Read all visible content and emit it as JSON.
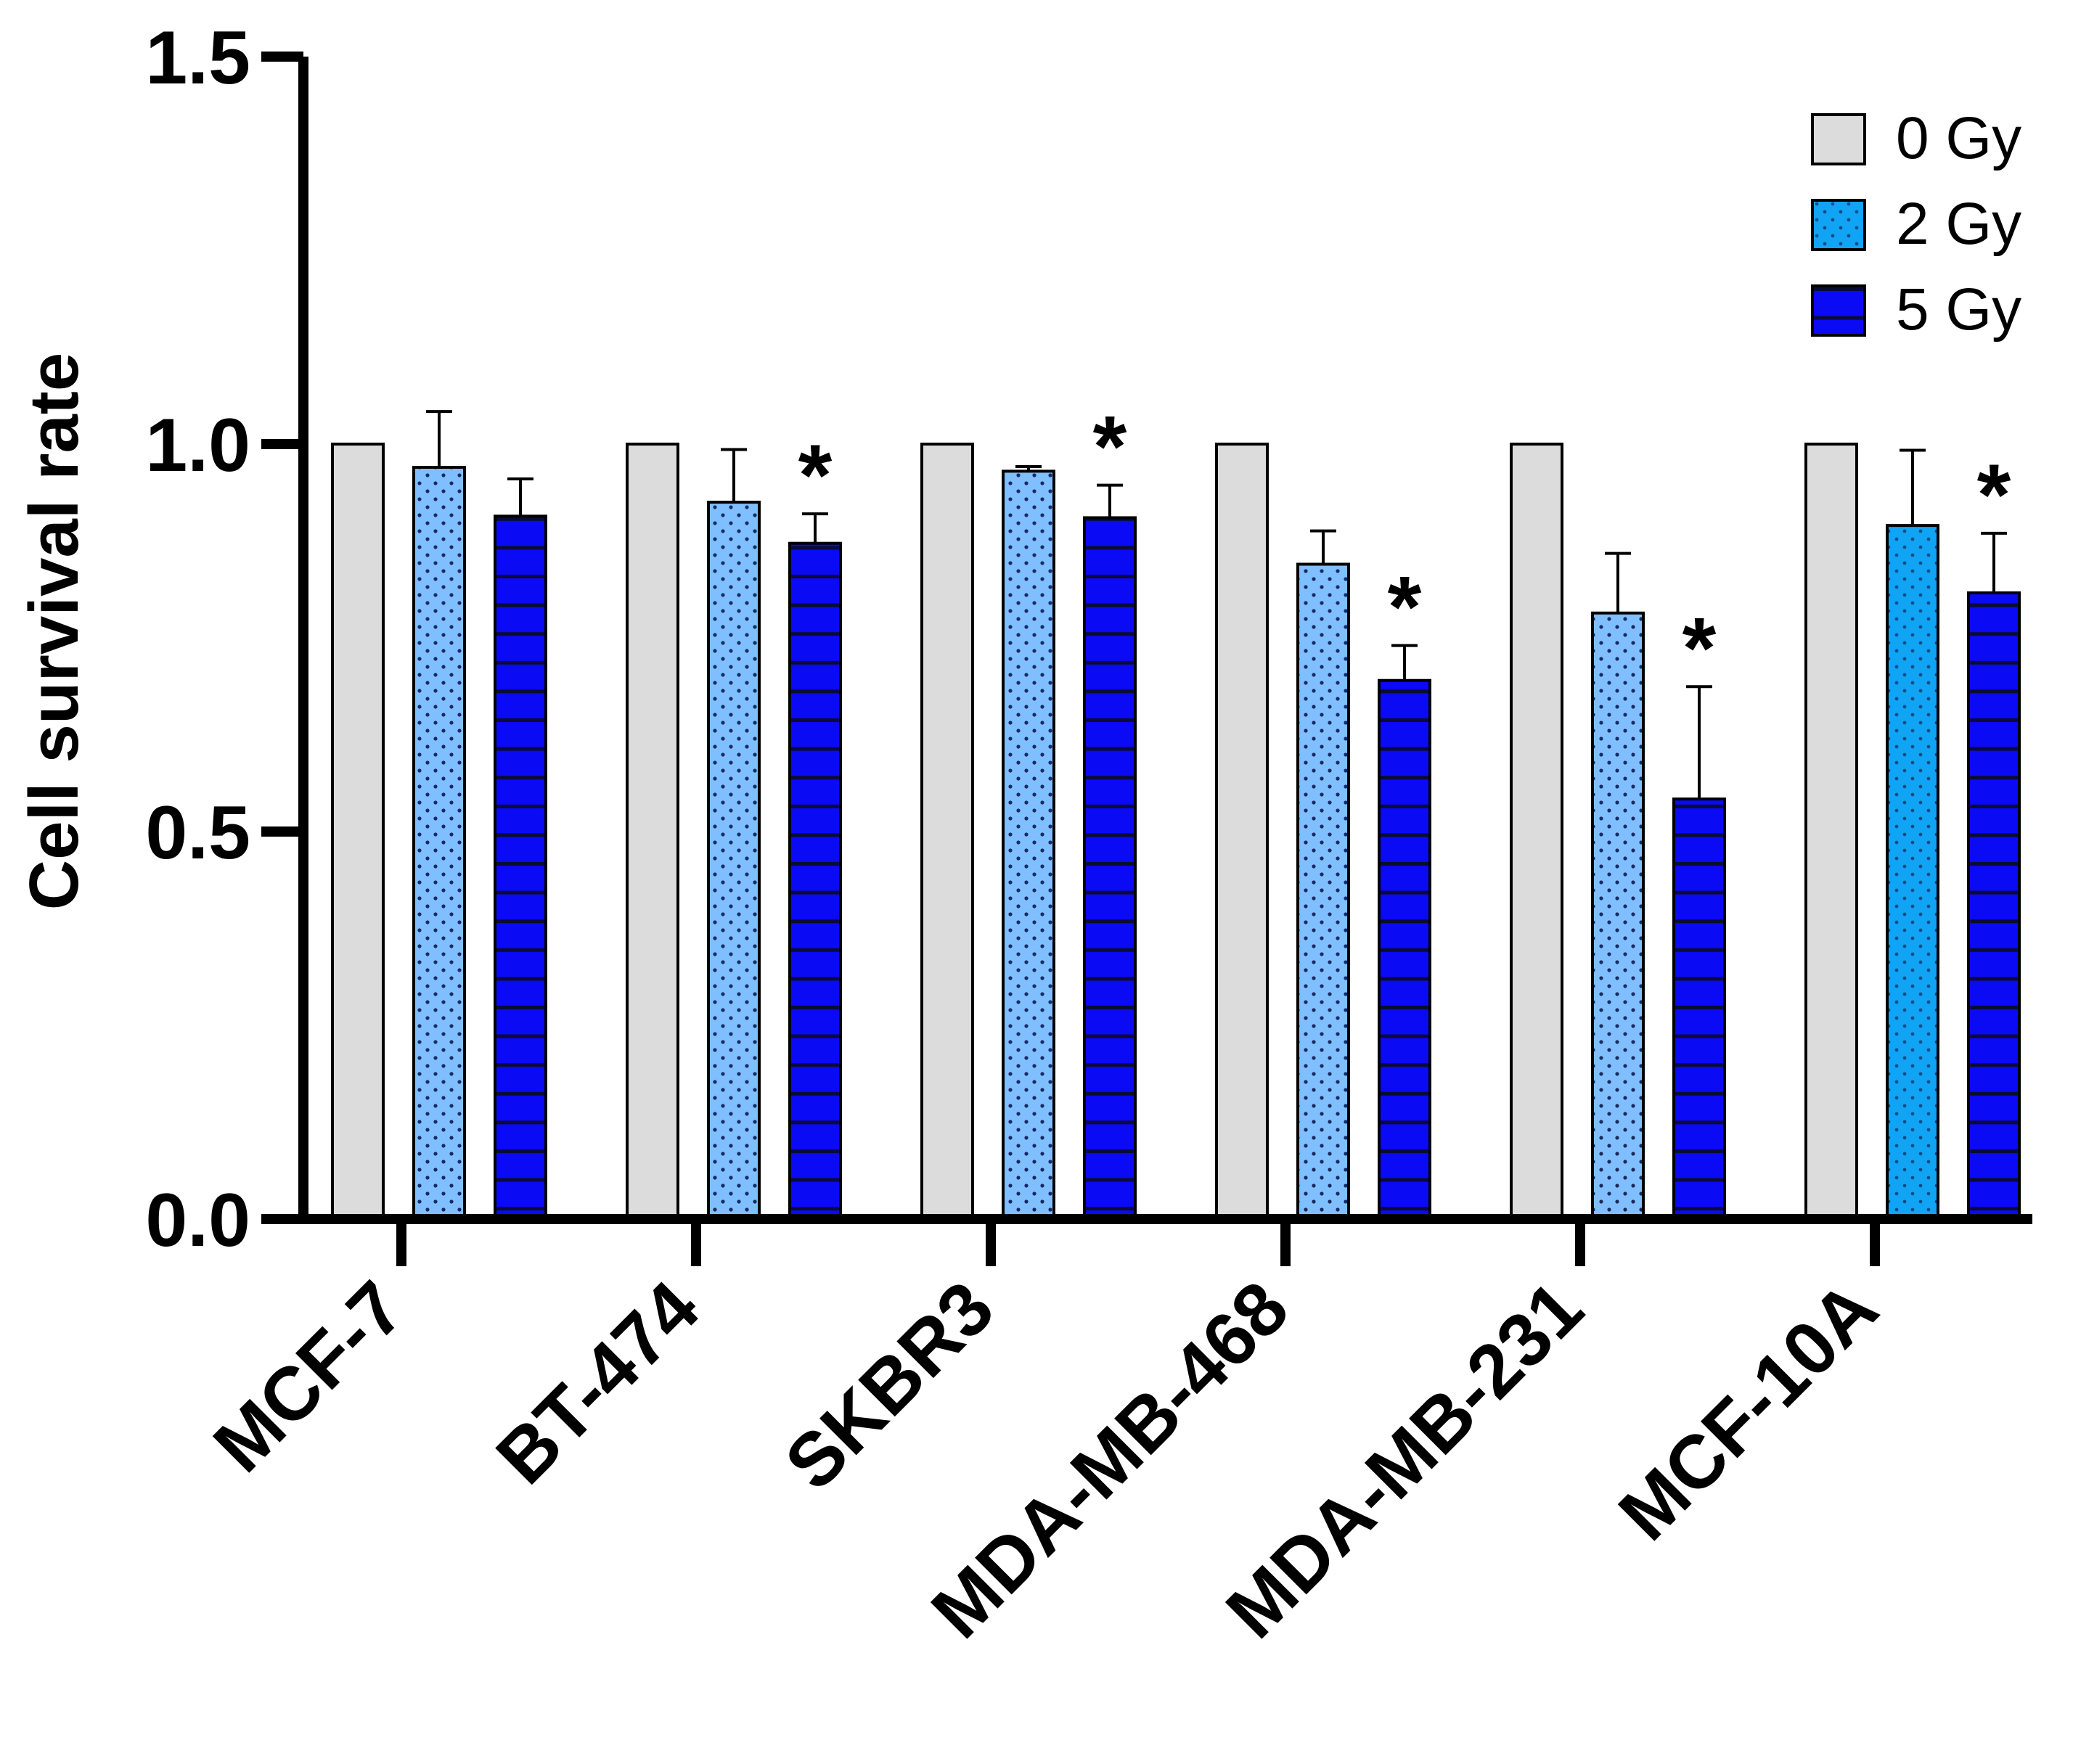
{
  "chart_data": {
    "type": "bar",
    "title": "",
    "xlabel": "",
    "ylabel": "Cell survival rate",
    "ylim": [
      0,
      1.5
    ],
    "yticks": [
      0.0,
      0.5,
      1.0,
      1.5
    ],
    "ytick_labels": [
      "0.0",
      "0.5",
      "1.0",
      "1.5"
    ],
    "categories": [
      "MCF-7",
      "BT-474",
      "SKBR3",
      "MDA-MB-468",
      "MDA-MB-231",
      "MCF-10A"
    ],
    "series": [
      {
        "name": "0 Gy",
        "pattern": "solid",
        "fill": "#dcdcdc",
        "values": [
          1.0,
          1.0,
          1.0,
          1.0,
          1.0,
          1.0
        ],
        "errors": [
          0,
          0,
          0,
          0,
          0,
          0
        ],
        "significant": [
          false,
          false,
          false,
          false,
          false,
          false
        ]
      },
      {
        "name": "2 Gy",
        "pattern": "dots",
        "fill": "#7fbfff",
        "values": [
          0.97,
          0.925,
          0.965,
          0.845,
          0.782,
          0.895
        ],
        "errors": [
          0.072,
          0.068,
          0.006,
          0.043,
          0.077,
          0.097
        ],
        "significant": [
          false,
          false,
          false,
          false,
          false,
          false
        ]
      },
      {
        "name": "5 Gy",
        "pattern": "horizontal-lines",
        "fill": "#0a0af5",
        "values": [
          0.907,
          0.872,
          0.905,
          0.695,
          0.542,
          0.808
        ],
        "errors": [
          0.048,
          0.038,
          0.042,
          0.045,
          0.145,
          0.077
        ],
        "significant": [
          false,
          true,
          true,
          true,
          true,
          true
        ]
      }
    ],
    "significance_marker": "*",
    "legend_position": "top-right"
  },
  "colors": {
    "axis": "#000000",
    "bar_0gy": "#dcdcdc",
    "bar_2gy": "#7fbfff",
    "bar_2gy_mcf10a": "#12a4f4",
    "bar_5gy": "#0a0af5"
  }
}
